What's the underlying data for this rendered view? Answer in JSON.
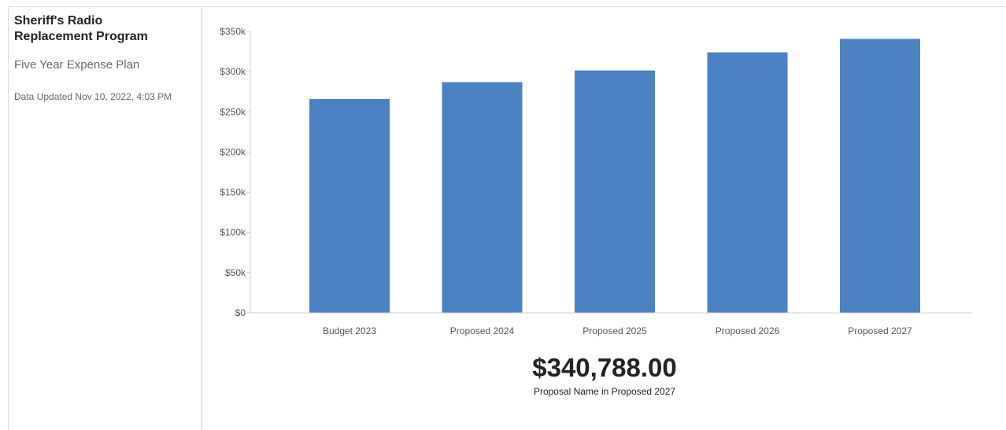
{
  "sidebar": {
    "title": "Sheriff's Radio Replacement Program",
    "subtitle": "Five Year Expense Plan",
    "updated": "Data Updated Nov 10, 2022, 4:03 PM"
  },
  "summary": {
    "value": "$340,788.00",
    "caption": "Proposal Name in Proposed 2027"
  },
  "chart_data": {
    "type": "bar",
    "categories": [
      "Budget 2023",
      "Proposed 2024",
      "Proposed 2025",
      "Proposed 2026",
      "Proposed 2027"
    ],
    "values": [
      266000,
      287000,
      301500,
      324000,
      340788
    ],
    "ylim": [
      0,
      350000
    ],
    "yticks": [
      0,
      50000,
      100000,
      150000,
      200000,
      250000,
      300000,
      350000
    ],
    "ytick_labels": [
      "$0",
      "$50k",
      "$100k",
      "$150k",
      "$200k",
      "$250k",
      "$300k",
      "$350k"
    ],
    "title": "",
    "xlabel": "",
    "ylabel": "",
    "grid": false,
    "bar_color": "#4a82c3"
  }
}
